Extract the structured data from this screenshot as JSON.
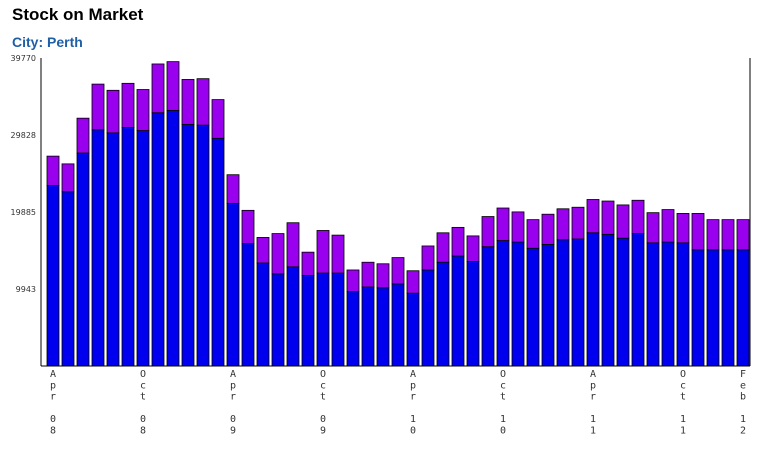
{
  "header": {
    "title": "Stock on Market",
    "subtitle": "City: Perth"
  },
  "chart_data": {
    "type": "bar",
    "stacked": true,
    "title": "Stock on Market",
    "subtitle": "City: Perth",
    "xlabel": "",
    "ylabel": "",
    "ylim": [
      0,
      39770
    ],
    "yticks": [
      9943,
      19885,
      29828,
      39770
    ],
    "grid": false,
    "legend": "none",
    "x_tick_labels": [
      {
        "index": 0,
        "label": "Apr 08"
      },
      {
        "index": 6,
        "label": "Oct 08"
      },
      {
        "index": 12,
        "label": "Apr 09"
      },
      {
        "index": 18,
        "label": "Oct 09"
      },
      {
        "index": 24,
        "label": "Apr 10"
      },
      {
        "index": 30,
        "label": "Oct 10"
      },
      {
        "index": 36,
        "label": "Apr 11"
      },
      {
        "index": 42,
        "label": "Oct 11"
      },
      {
        "index": 46,
        "label": "Feb 12"
      }
    ],
    "categories": [
      "Apr 08",
      "May 08",
      "Jun 08",
      "Jul 08",
      "Aug 08",
      "Sep 08",
      "Oct 08",
      "Nov 08",
      "Dec 08",
      "Jan 09",
      "Feb 09",
      "Mar 09",
      "Apr 09",
      "May 09",
      "Jun 09",
      "Jul 09",
      "Aug 09",
      "Sep 09",
      "Oct 09",
      "Nov 09",
      "Dec 09",
      "Jan 10",
      "Feb 10",
      "Mar 10",
      "Apr 10",
      "May 10",
      "Jun 10",
      "Jul 10",
      "Aug 10",
      "Sep 10",
      "Oct 10",
      "Nov 10",
      "Dec 10",
      "Jan 11",
      "Feb 11",
      "Mar 11",
      "Apr 11",
      "May 11",
      "Jun 11",
      "Jul 11",
      "Aug 11",
      "Sep 11",
      "Oct 11",
      "Nov 11",
      "Dec 11",
      "Jan 12",
      "Feb 12"
    ],
    "series": [
      {
        "color": "#0000ee",
        "values": [
          23300,
          22500,
          27500,
          30500,
          30100,
          30800,
          30400,
          32700,
          33000,
          31200,
          31100,
          29400,
          21000,
          15800,
          13300,
          11900,
          12800,
          11700,
          12000,
          12000,
          9600,
          10200,
          10100,
          10600,
          9400,
          12400,
          13400,
          14200,
          13500,
          15400,
          16200,
          16000,
          15200,
          15700,
          16300,
          16400,
          17200,
          17000,
          16500,
          17100,
          15900,
          16000,
          15900,
          15000,
          15000,
          15000,
          15000
        ],
        "totals": [
          27100,
          26100,
          32000,
          36400,
          35600,
          36500,
          35700,
          39000,
          39300,
          37000,
          37100,
          34400,
          24700,
          20100,
          16600,
          17100,
          18500,
          14700,
          17500,
          16900,
          12400,
          13400,
          13200,
          14000,
          12300,
          15500,
          17200,
          17900,
          16800,
          19300,
          20400,
          19900,
          18900,
          19600,
          20300,
          20500,
          21500,
          21300,
          20800,
          21400,
          19800,
          20200,
          19700,
          19700,
          18900,
          18900,
          18900
        ]
      },
      {
        "color": "#9900ee",
        "values": [
          3800,
          3600,
          4500,
          5900,
          5500,
          5700,
          5300,
          6300,
          6300,
          5800,
          6000,
          5000,
          3700,
          4300,
          3300,
          5200,
          5700,
          3000,
          5500,
          4900,
          2800,
          3200,
          3100,
          3400,
          2900,
          3100,
          3800,
          3700,
          3300,
          3900,
          4200,
          3900,
          3700,
          3900,
          4000,
          4100,
          4300,
          4300,
          4300,
          4300,
          3900,
          4200,
          3800,
          4700,
          3900,
          3900,
          3900
        ]
      }
    ]
  }
}
